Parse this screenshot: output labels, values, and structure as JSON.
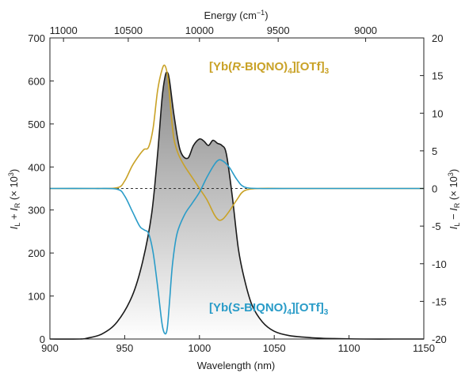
{
  "chart_data": {
    "type": "line",
    "xlabel": "Wavelength (nm)",
    "x2label": "Energy (cm⁻¹)",
    "ylabel": "I_L + I_R (× 10³)",
    "y2label": "I_L − I_R (× 10³)",
    "xlim": [
      900,
      1150
    ],
    "ylim": [
      0,
      700
    ],
    "y2lim": [
      -20,
      20
    ],
    "xticks": [
      900,
      950,
      1000,
      1050,
      1100,
      1150
    ],
    "yticks": [
      0,
      100,
      200,
      300,
      400,
      500,
      600,
      700
    ],
    "y2ticks": [
      -20,
      -15,
      -10,
      -5,
      0,
      5,
      10,
      15,
      20
    ],
    "x2ticks": [
      11000,
      10500,
      10000,
      9500,
      9000
    ],
    "colors": {
      "total": "#1a1a1a",
      "r": "#c9a227",
      "s": "#2a9cc8",
      "zero": "#333333"
    },
    "series": [
      {
        "name": "",
        "key": "total",
        "axis": "left",
        "x": [
          900,
          920,
          925,
          935,
          945,
          955,
          962,
          968,
          972,
          975,
          977,
          978.5,
          980,
          983,
          987,
          992,
          996,
          1000,
          1003,
          1006,
          1009,
          1012,
          1015,
          1018,
          1022,
          1026,
          1030,
          1035,
          1042,
          1050,
          1060,
          1075,
          1090,
          1110,
          1130,
          1150
        ],
        "y": [
          0,
          0,
          2,
          12,
          40,
          100,
          180,
          290,
          430,
          560,
          610,
          620,
          600,
          520,
          440,
          420,
          450,
          465,
          460,
          450,
          462,
          455,
          450,
          430,
          330,
          210,
          140,
          80,
          40,
          18,
          8,
          3,
          1,
          0,
          0,
          0
        ]
      },
      {
        "name": "[Yb(R-BIQNO)4][OTf]3",
        "key": "r",
        "axis": "right",
        "x": [
          900,
          930,
          945,
          950,
          955,
          960,
          963,
          966,
          969,
          972,
          975,
          977,
          979,
          981,
          983,
          986,
          990,
          995,
          1000,
          1005,
          1010,
          1013,
          1016,
          1020,
          1025,
          1030,
          1040,
          1060,
          1100,
          1150
        ],
        "y": [
          0,
          0,
          0.1,
          1,
          3,
          4.5,
          5.2,
          5.5,
          8,
          13,
          15.8,
          16.3,
          14.5,
          10,
          6.5,
          4.5,
          3,
          1.5,
          0,
          -1.5,
          -3.5,
          -4.2,
          -4.0,
          -3.0,
          -1.5,
          -0.3,
          0,
          0,
          0,
          0
        ]
      },
      {
        "name": "[Yb(S-BIQNO)4][OTf]3",
        "key": "s",
        "axis": "right",
        "x": [
          900,
          930,
          945,
          950,
          955,
          960,
          963,
          966,
          969,
          972,
          975,
          977,
          978.5,
          980,
          982,
          985,
          990,
          995,
          1000,
          1005,
          1010,
          1013,
          1016,
          1020,
          1025,
          1030,
          1040,
          1060,
          1100,
          1150
        ],
        "y": [
          0,
          0,
          -0.1,
          -1,
          -3,
          -5,
          -5.5,
          -6,
          -8.5,
          -13,
          -18,
          -19.3,
          -18.5,
          -15,
          -10,
          -6,
          -3.5,
          -2,
          -0.5,
          1.5,
          3.2,
          3.8,
          3.6,
          2.8,
          1.2,
          0.2,
          0,
          0,
          0,
          0
        ]
      }
    ],
    "legend_r_parts": [
      "[Yb(",
      "R",
      "-BIQNO)",
      "4",
      "][OTf]",
      "3"
    ],
    "legend_s_parts": [
      "[Yb(",
      "S",
      "-BIQNO)",
      "4",
      "][OTf]",
      "3"
    ]
  }
}
